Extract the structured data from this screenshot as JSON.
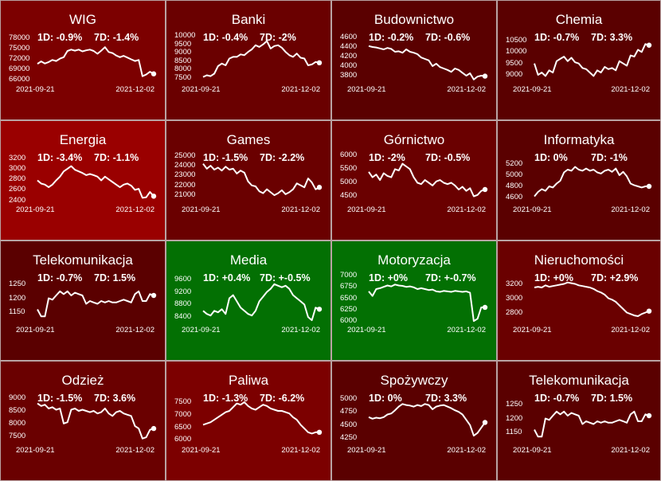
{
  "colors": {
    "darkest": "#5a0000",
    "dark": "#6a0000",
    "medium": "#7c0000",
    "bright": "#9a0000",
    "green": "#037003",
    "line": "#ffffff",
    "border": "#b9a3a3"
  },
  "chart_data": [
    {
      "type": "line",
      "title": "WIG",
      "stat_1d": "1D: -0.9%",
      "stat_7d": "7D: -1.4%",
      "bg": "medium",
      "ylim": [
        65000,
        79500
      ],
      "yticks": [
        "78000",
        "75000",
        "72000",
        "69000",
        "66000"
      ],
      "x_start": "2021-09-21",
      "x_end": "2021-12-02",
      "values": [
        70500,
        71200,
        70600,
        71000,
        71600,
        71300,
        72000,
        72400,
        74200,
        74600,
        74300,
        74600,
        74100,
        74400,
        74600,
        74200,
        73400,
        74300,
        75300,
        73900,
        73600,
        72900,
        72400,
        72800,
        72300,
        71800,
        71300,
        71600,
        66900,
        67400,
        68200,
        67600
      ]
    },
    {
      "type": "line",
      "title": "Banki",
      "stat_1d": "1D: -0.4%",
      "stat_7d": "7D: -2%",
      "bg": "dark",
      "ylim": [
        7200,
        10200
      ],
      "yticks": [
        "10000",
        "9500",
        "9000",
        "8500",
        "8000",
        "7500"
      ],
      "x_start": "2021-09-21",
      "x_end": "2021-12-02",
      "values": [
        7550,
        7650,
        7600,
        7750,
        8200,
        8350,
        8250,
        8650,
        8750,
        8750,
        8900,
        8850,
        9050,
        9200,
        9450,
        9350,
        9500,
        9700,
        9250,
        9400,
        9450,
        9300,
        9050,
        8850,
        8750,
        8950,
        8700,
        8650,
        8250,
        8300,
        8450,
        8400
      ]
    },
    {
      "type": "line",
      "title": "Budownictwo",
      "stat_1d": "1D: -0.2%",
      "stat_7d": "7D: -0.6%",
      "bg": "darkest",
      "ylim": [
        3650,
        4700
      ],
      "yticks": [
        "4600",
        "4400",
        "4200",
        "4000",
        "3800"
      ],
      "x_start": "2021-09-21",
      "x_end": "2021-12-02",
      "values": [
        4420,
        4400,
        4390,
        4370,
        4350,
        4380,
        4360,
        4300,
        4310,
        4280,
        4350,
        4300,
        4280,
        4250,
        4180,
        4150,
        4120,
        4000,
        4050,
        3980,
        3950,
        3920,
        3880,
        3950,
        3920,
        3860,
        3800,
        3850,
        3720,
        3780,
        3800,
        3790
      ]
    },
    {
      "type": "line",
      "title": "Chemia",
      "stat_1d": "1D: -0.7%",
      "stat_7d": "7D: 3.3%",
      "bg": "darkest",
      "ylim": [
        8650,
        10850
      ],
      "yticks": [
        "10500",
        "10000",
        "9500",
        "9000"
      ],
      "x_start": "2021-09-21",
      "x_end": "2021-12-02",
      "values": [
        9500,
        9000,
        9100,
        8950,
        9200,
        9100,
        9600,
        9700,
        9800,
        9600,
        9750,
        9550,
        9500,
        9300,
        9250,
        9100,
        8950,
        9200,
        9100,
        9350,
        9250,
        9300,
        9200,
        9600,
        9500,
        9400,
        9850,
        9800,
        10100,
        10000,
        10350,
        10300
      ]
    },
    {
      "type": "line",
      "title": "Energia",
      "stat_1d": "1D: -3.4%",
      "stat_7d": "7D: -1.1%",
      "bg": "bright",
      "ylim": [
        2350,
        3300
      ],
      "yticks": [
        "3200",
        "3000",
        "2800",
        "2600",
        "2400"
      ],
      "x_start": "2021-09-21",
      "x_end": "2021-12-02",
      "values": [
        2780,
        2720,
        2700,
        2650,
        2700,
        2780,
        2850,
        2950,
        3000,
        3050,
        2980,
        2950,
        2920,
        2880,
        2900,
        2880,
        2850,
        2780,
        2850,
        2800,
        2750,
        2700,
        2650,
        2700,
        2720,
        2680,
        2600,
        2620,
        2450,
        2460,
        2560,
        2480
      ]
    },
    {
      "type": "line",
      "title": "Games",
      "stat_1d": "1D: -1.5%",
      "stat_7d": "7D: -2.2%",
      "bg": "dark",
      "ylim": [
        20200,
        25300
      ],
      "yticks": [
        "25000",
        "24000",
        "23000",
        "22000",
        "21000"
      ],
      "x_start": "2021-09-21",
      "x_end": "2021-12-02",
      "values": [
        24200,
        23700,
        24000,
        23600,
        23800,
        23500,
        23900,
        23600,
        23700,
        23200,
        23500,
        23300,
        22400,
        22000,
        21900,
        21400,
        21200,
        21600,
        21300,
        21000,
        21200,
        21500,
        21100,
        21300,
        21600,
        22200,
        22000,
        21800,
        22700,
        22300,
        21600,
        21800
      ]
    },
    {
      "type": "line",
      "title": "Górnictwo",
      "stat_1d": "1D: -2%",
      "stat_7d": "7D: -0.5%",
      "bg": "dark",
      "ylim": [
        4250,
        6100
      ],
      "yticks": [
        "6000",
        "5500",
        "5000",
        "4500"
      ],
      "x_start": "2021-09-21",
      "x_end": "2021-12-02",
      "values": [
        5400,
        5200,
        5300,
        5100,
        5350,
        5250,
        5200,
        5500,
        5450,
        5700,
        5600,
        5500,
        5200,
        5000,
        4950,
        5100,
        5000,
        4900,
        5050,
        5100,
        5000,
        4950,
        5000,
        4900,
        4750,
        4850,
        4700,
        4800,
        4500,
        4550,
        4700,
        4750
      ]
    },
    {
      "type": "line",
      "title": "Informatyka",
      "stat_1d": "1D: 0%",
      "stat_7d": "7D: -1%",
      "bg": "darkest",
      "ylim": [
        4500,
        5400
      ],
      "yticks": [
        "5200",
        "5000",
        "4800",
        "4600"
      ],
      "x_start": "2021-09-21",
      "x_end": "2021-12-02",
      "values": [
        4620,
        4700,
        4750,
        4720,
        4800,
        4780,
        4850,
        4900,
        5050,
        5100,
        5080,
        5150,
        5100,
        5080,
        5120,
        5080,
        5100,
        5050,
        5030,
        5080,
        5100,
        5060,
        5120,
        5000,
        5060,
        4980,
        4850,
        4820,
        4800,
        4780,
        4800,
        4800
      ]
    },
    {
      "type": "line",
      "title": "Telekomunikacja",
      "stat_1d": "1D: -0.7%",
      "stat_7d": "7D: 1.5%",
      "bg": "darkest",
      "ylim": [
        1110,
        1290
      ],
      "yticks": [
        "1250",
        "1200",
        "1150"
      ],
      "x_start": "2021-09-21",
      "x_end": "2021-12-02",
      "values": [
        1160,
        1135,
        1135,
        1200,
        1195,
        1210,
        1225,
        1215,
        1225,
        1210,
        1220,
        1215,
        1210,
        1180,
        1190,
        1185,
        1180,
        1190,
        1185,
        1190,
        1185,
        1185,
        1190,
        1195,
        1190,
        1185,
        1215,
        1225,
        1190,
        1190,
        1215,
        1210
      ]
    },
    {
      "type": "line",
      "title": "Media",
      "stat_1d": "1D: +0.4%",
      "stat_7d": "7D: +-0.5%",
      "bg": "green",
      "ylim": [
        8200,
        9800
      ],
      "yticks": [
        "9600",
        "9200",
        "8800",
        "8400"
      ],
      "x_start": "2021-09-21",
      "x_end": "2021-12-02",
      "values": [
        8600,
        8500,
        8450,
        8600,
        8550,
        8650,
        8500,
        9000,
        9100,
        8900,
        8700,
        8600,
        8500,
        8450,
        8600,
        8900,
        9050,
        9200,
        9300,
        9450,
        9400,
        9350,
        9400,
        9300,
        9100,
        9000,
        8900,
        8800,
        8400,
        8300,
        8700,
        8650
      ]
    },
    {
      "type": "line",
      "title": "Motoryzacja",
      "stat_1d": "1D: +0%",
      "stat_7d": "7D: +-0.7%",
      "bg": "green",
      "ylim": [
        5950,
        7050
      ],
      "yticks": [
        "7000",
        "6750",
        "6500",
        "6250",
        "6000"
      ],
      "x_start": "2021-09-21",
      "x_end": "2021-12-02",
      "values": [
        6650,
        6550,
        6700,
        6720,
        6750,
        6780,
        6760,
        6800,
        6780,
        6770,
        6750,
        6760,
        6740,
        6700,
        6720,
        6700,
        6680,
        6690,
        6650,
        6640,
        6660,
        6650,
        6640,
        6660,
        6650,
        6640,
        6650,
        6620,
        6000,
        6050,
        6300,
        6300
      ]
    },
    {
      "type": "line",
      "title": "Nieruchomości",
      "stat_1d": "1D: +0%",
      "stat_7d": "7D: +2.9%",
      "bg": "dark",
      "ylim": [
        2650,
        3350
      ],
      "yticks": [
        "3200",
        "3000",
        "2800"
      ],
      "x_start": "2021-09-21",
      "x_end": "2021-12-02",
      "values": [
        3150,
        3160,
        3150,
        3180,
        3160,
        3170,
        3180,
        3190,
        3200,
        3220,
        3210,
        3200,
        3180,
        3170,
        3160,
        3150,
        3130,
        3100,
        3080,
        3050,
        3000,
        2980,
        2950,
        2900,
        2850,
        2800,
        2780,
        2760,
        2750,
        2780,
        2800,
        2820
      ]
    },
    {
      "type": "line",
      "title": "Odzież",
      "stat_1d": "1D: -1.5%",
      "stat_7d": "7D: 3.6%",
      "bg": "dark",
      "ylim": [
        7200,
        9200
      ],
      "yticks": [
        "9000",
        "8500",
        "8000",
        "7500"
      ],
      "x_start": "2021-09-21",
      "x_end": "2021-12-02",
      "values": [
        8800,
        8700,
        8750,
        8600,
        8650,
        8550,
        8600,
        8000,
        8050,
        8550,
        8600,
        8500,
        8550,
        8500,
        8450,
        8500,
        8400,
        8450,
        8600,
        8400,
        8300,
        8450,
        8500,
        8400,
        8350,
        8300,
        7900,
        7800,
        7400,
        7450,
        7750,
        7800
      ]
    },
    {
      "type": "line",
      "title": "Paliwa",
      "stat_1d": "1D: -1.3%",
      "stat_7d": "7D: -6.2%",
      "bg": "medium",
      "ylim": [
        5850,
        7850
      ],
      "yticks": [
        "7500",
        "7000",
        "6500",
        "6000"
      ],
      "x_start": "2021-09-21",
      "x_end": "2021-12-02",
      "values": [
        6600,
        6650,
        6700,
        6800,
        6900,
        7000,
        7100,
        7150,
        7300,
        7450,
        7400,
        7500,
        7350,
        7250,
        7200,
        7300,
        7400,
        7350,
        7250,
        7200,
        7150,
        7150,
        7100,
        7050,
        6900,
        6800,
        6600,
        6450,
        6300,
        6250,
        6300,
        6300
      ]
    },
    {
      "type": "line",
      "title": "Spożywczy",
      "stat_1d": "1D: 0%",
      "stat_7d": "7D: 3.3%",
      "bg": "darkest",
      "ylim": [
        4150,
        5100
      ],
      "yticks": [
        "5000",
        "4750",
        "4500",
        "4250"
      ],
      "x_start": "2021-09-21",
      "x_end": "2021-12-02",
      "values": [
        4650,
        4620,
        4640,
        4630,
        4650,
        4700,
        4720,
        4780,
        4850,
        4900,
        4880,
        4870,
        4850,
        4880,
        4860,
        4900,
        4880,
        4800,
        4850,
        4870,
        4880,
        4850,
        4820,
        4780,
        4750,
        4700,
        4600,
        4500,
        4300,
        4350,
        4450,
        4550
      ]
    },
    {
      "type": "line",
      "title": "Telekomunikacja",
      "stat_1d": "1D: -0.7%",
      "stat_7d": "7D: 1.5%",
      "bg": "darkest",
      "ylim": [
        1110,
        1290
      ],
      "yticks": [
        "1250",
        "1200",
        "1150"
      ],
      "x_start": "2021-09-21",
      "x_end": "2021-12-02",
      "values": [
        1160,
        1135,
        1135,
        1200,
        1195,
        1210,
        1225,
        1215,
        1225,
        1210,
        1220,
        1215,
        1210,
        1180,
        1190,
        1185,
        1180,
        1190,
        1185,
        1190,
        1185,
        1185,
        1190,
        1195,
        1190,
        1185,
        1215,
        1225,
        1190,
        1190,
        1215,
        1210
      ]
    }
  ]
}
